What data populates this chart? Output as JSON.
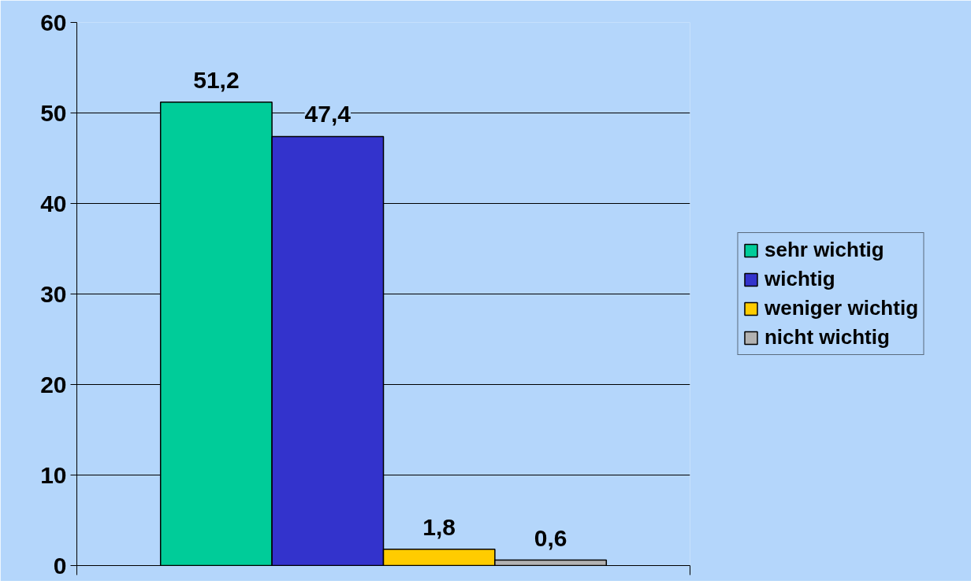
{
  "chart_data": {
    "type": "bar",
    "categories": [
      null
    ],
    "series": [
      {
        "name": "sehr wichtig",
        "color": "#00cc99",
        "values": [
          51.2
        ],
        "value_labels": [
          "51,2"
        ]
      },
      {
        "name": "wichtig",
        "color": "#3333cc",
        "values": [
          47.4
        ],
        "value_labels": [
          "47,4"
        ]
      },
      {
        "name": "weniger wichtig",
        "color": "#ffcc00",
        "values": [
          1.8
        ],
        "value_labels": [
          "1,8"
        ]
      },
      {
        "name": "nicht wichtig",
        "color": "#b2b2b2",
        "values": [
          0.6
        ],
        "value_labels": [
          "0,6"
        ]
      }
    ],
    "ylim": [
      0,
      60
    ],
    "yticks": [
      0,
      10,
      20,
      30,
      40,
      50,
      60
    ],
    "grid": "y",
    "legend": "right",
    "tick_labels": "y"
  }
}
